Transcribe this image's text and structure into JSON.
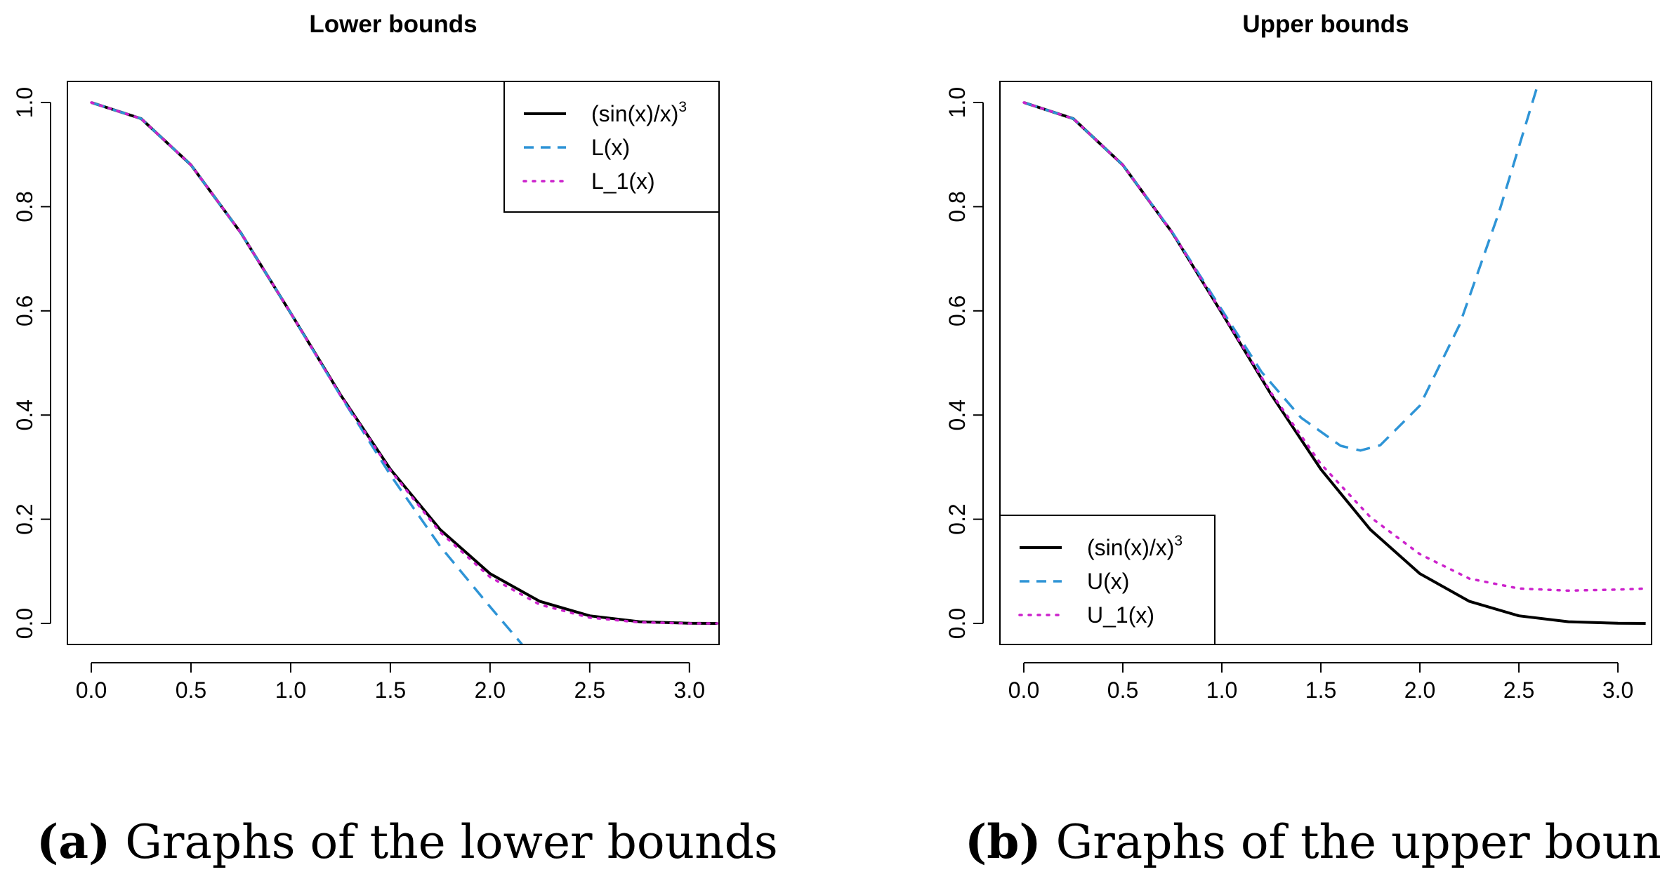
{
  "chart_data": [
    {
      "type": "line",
      "title": "Lower bounds",
      "xlabel": "",
      "ylabel": "",
      "xlim": [
        0,
        3.14159
      ],
      "ylim": [
        0,
        1
      ],
      "x_ticks": [
        "0.0",
        "0.5",
        "1.0",
        "1.5",
        "2.0",
        "2.5",
        "3.0"
      ],
      "y_ticks": [
        "0.0",
        "0.2",
        "0.4",
        "0.6",
        "0.8",
        "1.0"
      ],
      "legend_position": "top-right",
      "series": [
        {
          "name": "(sin(x)/x)",
          "superscript": "3",
          "style": "solid",
          "color": "#000000",
          "x": [
            0,
            0.25,
            0.5,
            0.75,
            1.0,
            1.25,
            1.5,
            1.75,
            2.0,
            2.25,
            2.5,
            2.75,
            3.0,
            3.14
          ],
          "y": [
            1.0,
            0.969,
            0.88,
            0.75,
            0.596,
            0.439,
            0.296,
            0.18,
            0.0955,
            0.0423,
            0.0145,
            0.0032,
            0.0003,
            0.0
          ]
        },
        {
          "name": "L(x)",
          "style": "dashed",
          "color": "#2e94d6",
          "x": [
            0,
            0.25,
            0.5,
            0.75,
            1.0,
            1.25,
            1.5,
            1.75,
            2.0,
            2.16
          ],
          "y": [
            1.0,
            0.969,
            0.88,
            0.75,
            0.596,
            0.437,
            0.285,
            0.148,
            0.032,
            -0.04
          ]
        },
        {
          "name": "L_1(x)",
          "style": "dotted",
          "color": "#cc22cc",
          "x": [
            0,
            0.25,
            0.5,
            0.75,
            1.0,
            1.25,
            1.5,
            1.75,
            2.0,
            2.25,
            2.5,
            2.75,
            3.0,
            3.14
          ],
          "y": [
            1.0,
            0.969,
            0.88,
            0.75,
            0.596,
            0.438,
            0.294,
            0.175,
            0.089,
            0.036,
            0.011,
            0.002,
            0.0,
            0.0
          ]
        }
      ]
    },
    {
      "type": "line",
      "title": "Upper bounds",
      "xlabel": "",
      "ylabel": "",
      "xlim": [
        0,
        3.14159
      ],
      "ylim": [
        0,
        1
      ],
      "x_ticks": [
        "0.0",
        "0.5",
        "1.0",
        "1.5",
        "2.0",
        "2.5",
        "3.0"
      ],
      "y_ticks": [
        "0.0",
        "0.2",
        "0.4",
        "0.6",
        "0.8",
        "1.0"
      ],
      "legend_position": "bottom-left",
      "series": [
        {
          "name": "(sin(x)/x)",
          "superscript": "3",
          "style": "solid",
          "color": "#000000",
          "x": [
            0,
            0.25,
            0.5,
            0.75,
            1.0,
            1.25,
            1.5,
            1.75,
            2.0,
            2.25,
            2.5,
            2.75,
            3.0,
            3.14
          ],
          "y": [
            1.0,
            0.969,
            0.88,
            0.75,
            0.596,
            0.439,
            0.296,
            0.18,
            0.0955,
            0.0423,
            0.0145,
            0.0032,
            0.0003,
            0.0
          ]
        },
        {
          "name": "U(x)",
          "style": "dashed",
          "color": "#2e94d6",
          "x": [
            0,
            0.25,
            0.5,
            0.75,
            1.0,
            1.2,
            1.4,
            1.6,
            1.7,
            1.8,
            2.0,
            2.2,
            2.4,
            2.6
          ],
          "y": [
            1.0,
            0.969,
            0.88,
            0.751,
            0.602,
            0.483,
            0.395,
            0.341,
            0.332,
            0.342,
            0.418,
            0.573,
            0.79,
            1.04
          ]
        },
        {
          "name": "U_1(x)",
          "style": "dotted",
          "color": "#cc22cc",
          "x": [
            0,
            0.25,
            0.5,
            0.75,
            1.0,
            1.25,
            1.5,
            1.75,
            2.0,
            2.25,
            2.5,
            2.75,
            3.0,
            3.14
          ],
          "y": [
            1.0,
            0.969,
            0.88,
            0.75,
            0.597,
            0.442,
            0.306,
            0.204,
            0.133,
            0.086,
            0.067,
            0.063,
            0.065,
            0.067
          ]
        }
      ]
    }
  ],
  "captions": [
    {
      "tag": "(a)",
      "text": " Graphs of the lower bounds"
    },
    {
      "tag": "(b)",
      "text": " Graphs of the upper bounds"
    }
  ]
}
